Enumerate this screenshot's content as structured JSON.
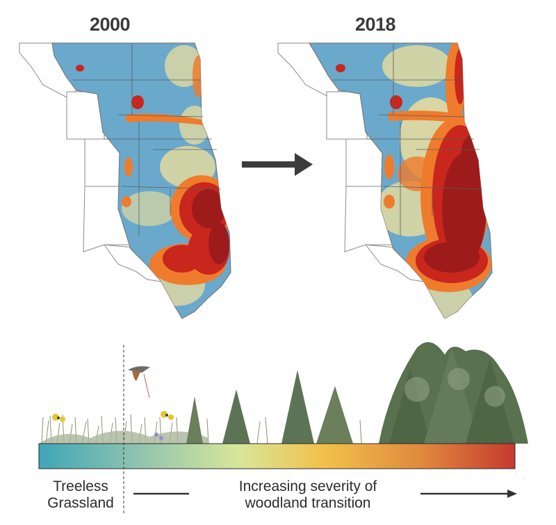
{
  "maps": {
    "left_year": "2000",
    "right_year": "2018"
  },
  "legend": {
    "start_label_line1": "Treeless",
    "start_label_line2": "Grassland",
    "severity_line1": "Increasing severity of",
    "severity_line2": "woodland transition",
    "gradient_colors": [
      "#3fa6b7",
      "#8cc2b0",
      "#d8e69a",
      "#f2c04a",
      "#e08a3e",
      "#c63a2f"
    ]
  },
  "colors": {
    "land_base": "#6aa9cc",
    "low_cover": "#f3e19a",
    "medium_cover": "#ef7b2c",
    "high_cover": "#c9261d",
    "severe_cover": "#9e1b1b",
    "arrow": "#3c3c3c"
  }
}
